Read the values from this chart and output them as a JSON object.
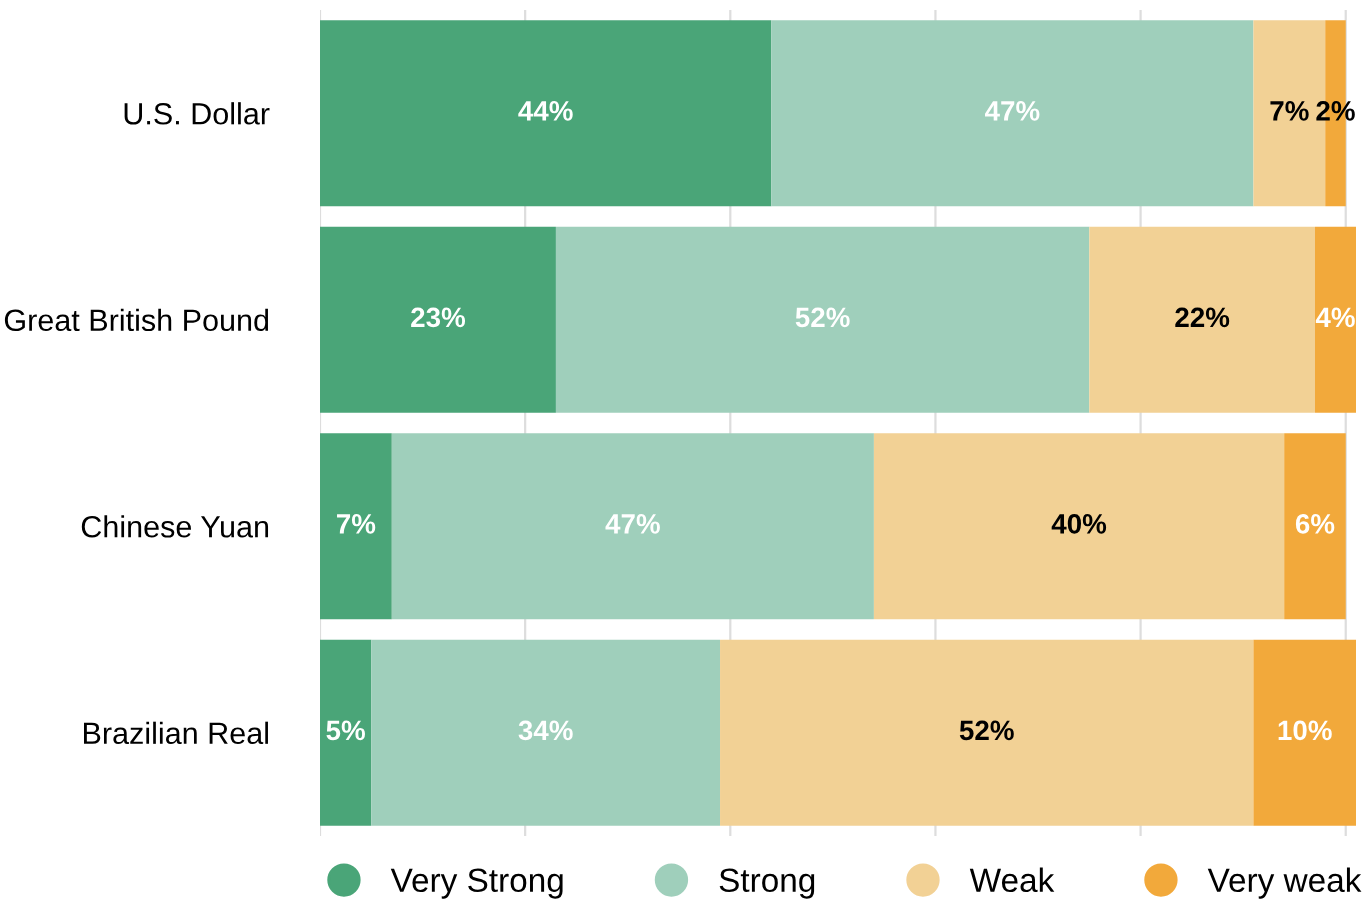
{
  "chart_data": {
    "type": "bar",
    "orientation": "horizontal",
    "stacked": true,
    "categories": [
      "U.S. Dollar",
      "Great British Pound",
      "Chinese Yuan",
      "Brazilian Real"
    ],
    "series": [
      {
        "name": "Very Strong",
        "color": "#4aa578",
        "values": [
          44,
          23,
          7,
          5
        ],
        "value_labels": [
          "44%",
          "23%",
          "7%",
          "5%"
        ]
      },
      {
        "name": "Strong",
        "color": "#9fcfbb",
        "values": [
          47,
          52,
          47,
          34
        ],
        "value_labels": [
          "47%",
          "52%",
          "47%",
          "34%"
        ]
      },
      {
        "name": "Weak",
        "color": "#f2d195",
        "values": [
          7,
          22,
          40,
          52
        ],
        "value_labels": [
          "7%",
          "22%",
          "40%",
          "52%"
        ]
      },
      {
        "name": "Very weak",
        "color": "#f2a93b",
        "values": [
          2,
          4,
          6,
          10
        ],
        "value_labels": [
          "2%",
          "4%",
          "6%",
          "10%"
        ]
      }
    ],
    "tick_labels": "y",
    "grid": "x",
    "legend": "bottom",
    "marker": "circle"
  }
}
